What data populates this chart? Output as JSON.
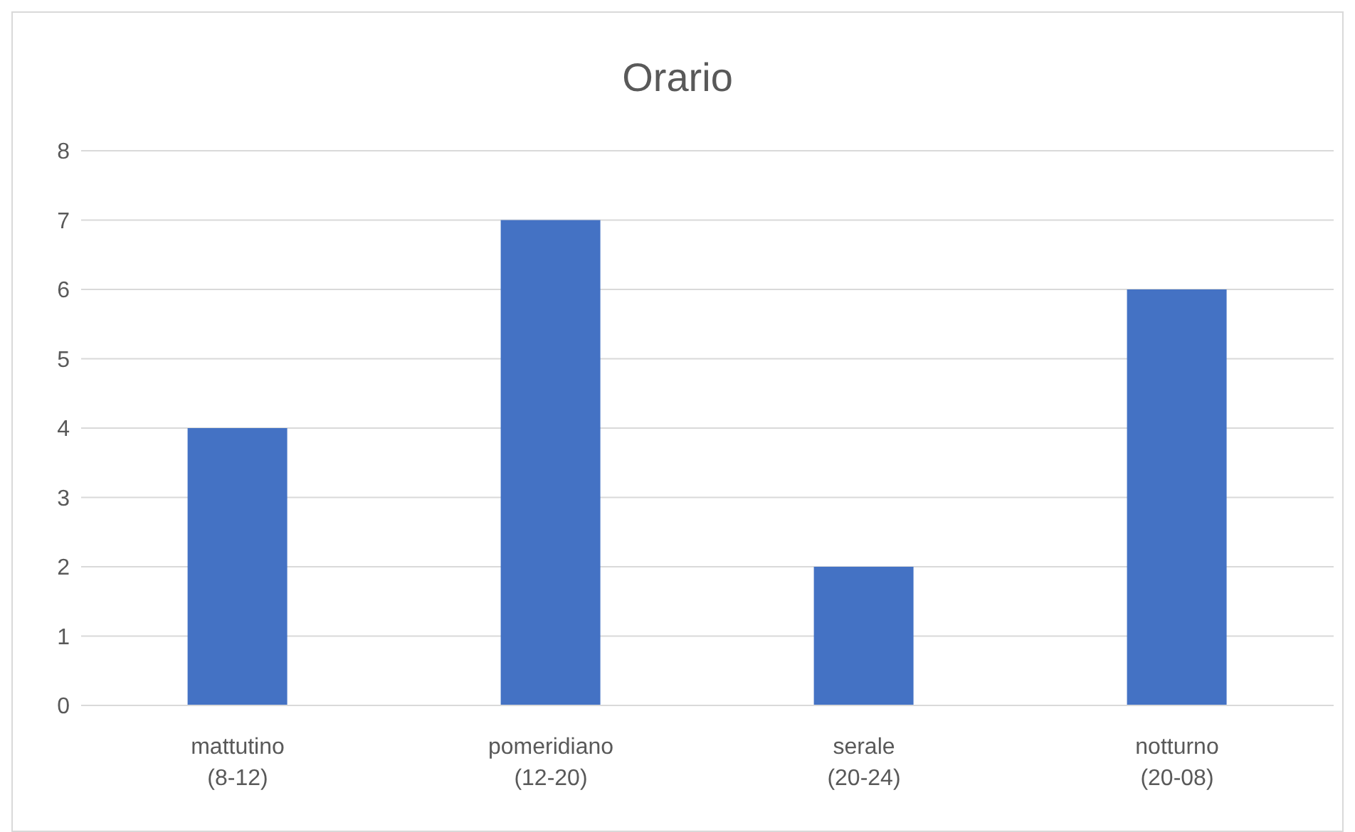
{
  "chart_data": {
    "type": "bar",
    "title": "Orario",
    "categories": [
      "mattutino\n(8-12)",
      "pomeridiano\n(12-20)",
      "serale\n(20-24)",
      "notturno\n(20-08)"
    ],
    "values": [
      4,
      7,
      2,
      6
    ],
    "color": "#4472c4",
    "ylim": [
      0,
      8
    ],
    "yticks": [
      0,
      1,
      2,
      3,
      4,
      5,
      6,
      7,
      8
    ],
    "grid": "y"
  }
}
